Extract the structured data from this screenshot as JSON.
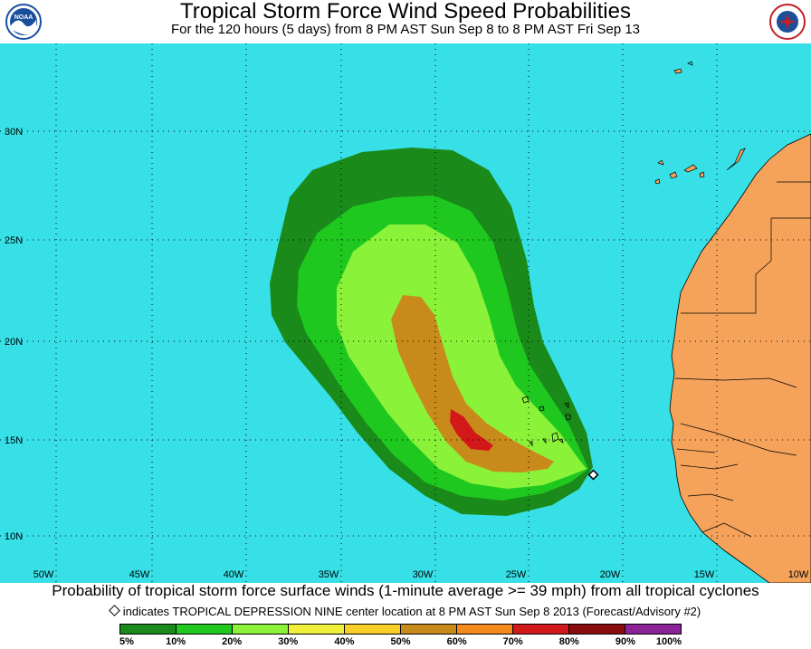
{
  "header": {
    "title": "Tropical Storm Force Wind Speed Probabilities",
    "subtitle": "For the 120 hours (5 days) from 8 PM AST Sun Sep 8 to 8 PM AST Fri Sep 13",
    "left_logo_text": "NOAA",
    "right_logo_text": "NATIONAL WEATHER SERVICE"
  },
  "map": {
    "ocean_color": "#37e0e6",
    "land_color": "#f5a35a",
    "latitude_labels": [
      "30N",
      "25N",
      "20N",
      "15N",
      "10N"
    ],
    "longitude_labels": [
      "50W",
      "45W",
      "40W",
      "35W",
      "30W",
      "25W",
      "20W",
      "15W",
      "10W"
    ],
    "storm_marker_icon": "diamond-icon"
  },
  "footer": {
    "caption": "Probability of tropical storm force surface winds (1-minute average >= 39 mph) from all tropical cyclones",
    "note": "indicates TROPICAL DEPRESSION NINE center location at 8 PM AST Sun Sep 8 2013 (Forecast/Advisory #2)"
  },
  "legend": {
    "colors": [
      "#1a8a1a",
      "#1fc81f",
      "#8af238",
      "#f0f03a",
      "#f7cd28",
      "#c98a1c",
      "#f58a1c",
      "#d21818",
      "#8b0c0c",
      "#8b2396"
    ],
    "labels": [
      "5%",
      "10%",
      "20%",
      "30%",
      "40%",
      "50%",
      "60%",
      "70%",
      "80%",
      "90%",
      "100%"
    ]
  }
}
